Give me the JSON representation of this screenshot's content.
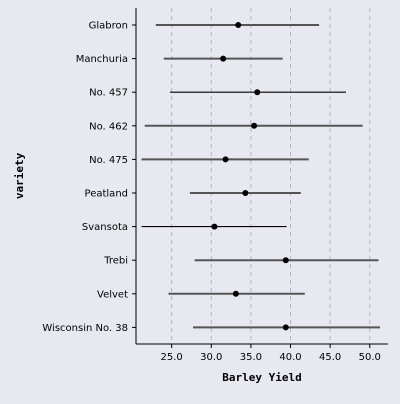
{
  "chart_data": {
    "type": "errorbar",
    "title": "",
    "xlabel": "Barley Yield",
    "ylabel": "variety",
    "xlim": [
      20.5,
      52.3
    ],
    "xticks": [
      "25.0",
      "30.0",
      "35.0",
      "40.0",
      "45.0",
      "50.0"
    ],
    "grid": "vertical dashed",
    "categories": [
      "Glabron",
      "Manchuria",
      "No. 457",
      "No. 462",
      "No. 475",
      "Peatland",
      "Svansota",
      "Trebi",
      "Velvet",
      "Wisconsin No. 38"
    ],
    "points": [
      {
        "variety": "Glabron",
        "mean": 33.4,
        "low": 23.0,
        "high": 43.6
      },
      {
        "variety": "Manchuria",
        "mean": 31.5,
        "low": 24.0,
        "high": 39.0
      },
      {
        "variety": "No. 457",
        "mean": 35.8,
        "low": 24.8,
        "high": 47.0
      },
      {
        "variety": "No. 462",
        "mean": 35.4,
        "low": 21.6,
        "high": 49.1
      },
      {
        "variety": "No. 475",
        "mean": 31.8,
        "low": 21.2,
        "high": 42.3
      },
      {
        "variety": "Peatland",
        "mean": 34.3,
        "low": 27.3,
        "high": 41.3
      },
      {
        "variety": "Svansota",
        "mean": 30.4,
        "low": 21.2,
        "high": 39.5
      },
      {
        "variety": "Trebi",
        "mean": 39.4,
        "low": 27.9,
        "high": 51.1
      },
      {
        "variety": "Velvet",
        "mean": 33.1,
        "low": 24.6,
        "high": 41.8
      },
      {
        "variety": "Wisconsin No. 38",
        "mean": 39.4,
        "low": 27.7,
        "high": 51.3
      }
    ],
    "colors": {
      "background": "#e8e8f0",
      "point": "#000000",
      "bar_dark": "#000000",
      "bar_gray": "#555555",
      "grid": "#b4b4c0"
    },
    "bar_color_by_category": [
      "bar_gray",
      "bar_gray",
      "bar_dark",
      "bar_gray",
      "bar_gray",
      "bar_gray",
      "bar_dark",
      "bar_gray",
      "bar_gray",
      "bar_gray"
    ]
  }
}
